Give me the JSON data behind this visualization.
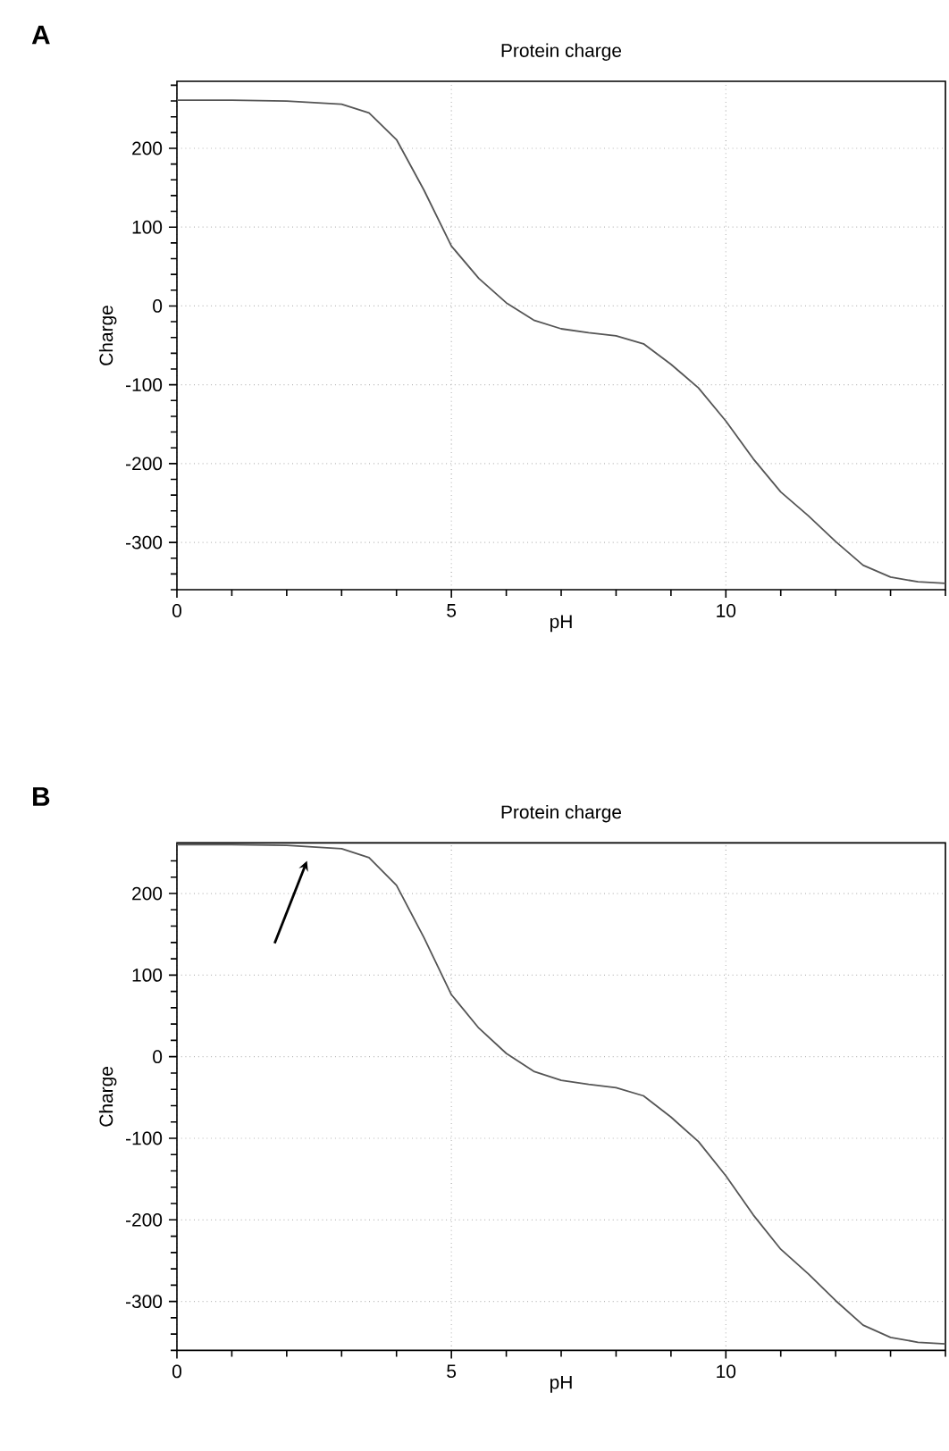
{
  "chart_data": [
    {
      "type": "line",
      "title": "Protein charge",
      "xlabel": "pH",
      "ylabel": "Charge",
      "annotations": [
        "A"
      ],
      "x": [
        0,
        1,
        2,
        3,
        3.5,
        4,
        4.5,
        5,
        5.5,
        6,
        6.5,
        7,
        7.5,
        8,
        8.5,
        9,
        9.5,
        10,
        10.5,
        11,
        11.5,
        12,
        12.5,
        13,
        13.5,
        14
      ],
      "series": [
        {
          "color": "#555555",
          "values": [
            261,
            261,
            260,
            256,
            245,
            211,
            147,
            76,
            35,
            4,
            -18,
            -29,
            -34,
            -38,
            -48,
            -74,
            -104,
            -146,
            -194,
            -236,
            -266,
            -299,
            -329,
            -344,
            -350,
            -352
          ]
        }
      ],
      "xlim": [
        0,
        14
      ],
      "ylim": [
        -360,
        285
      ],
      "grid": true,
      "marker": "none",
      "line_style": "solid",
      "xticks": [
        0,
        {
          "value": 1,
          "label": null
        },
        {
          "value": 2,
          "label": null
        },
        {
          "value": 3,
          "label": null
        },
        {
          "value": 4,
          "label": null
        },
        5,
        {
          "value": 6,
          "label": null
        },
        {
          "value": 7,
          "label": null
        },
        {
          "value": 8,
          "label": null
        },
        {
          "value": 9,
          "label": null
        },
        10,
        {
          "value": 11,
          "label": null
        },
        {
          "value": 12,
          "label": null
        },
        {
          "value": 13,
          "label": null
        },
        {
          "value": 14,
          "label": null
        }
      ],
      "yticks": [
        {
          "value": -360,
          "label": null
        },
        {
          "value": -340,
          "label": null
        },
        {
          "value": -320,
          "label": null
        },
        -300,
        {
          "value": -280,
          "label": null
        },
        {
          "value": -260,
          "label": null
        },
        {
          "value": -240,
          "label": null
        },
        {
          "value": -220,
          "label": null
        },
        -200,
        {
          "value": -180,
          "label": null
        },
        {
          "value": -160,
          "label": null
        },
        {
          "value": -140,
          "label": null
        },
        {
          "value": -120,
          "label": null
        },
        -100,
        {
          "value": -80,
          "label": null
        },
        {
          "value": -60,
          "label": null
        },
        {
          "value": -40,
          "label": null
        },
        {
          "value": -20,
          "label": null
        },
        0,
        {
          "value": 20,
          "label": null
        },
        {
          "value": 40,
          "label": null
        },
        {
          "value": 60,
          "label": null
        },
        {
          "value": 80,
          "label": null
        },
        100,
        {
          "value": 120,
          "label": null
        },
        {
          "value": 140,
          "label": null
        },
        {
          "value": 160,
          "label": null
        },
        {
          "value": 180,
          "label": null
        },
        200,
        {
          "value": 220,
          "label": null
        },
        {
          "value": 240,
          "label": null
        },
        {
          "value": 260,
          "label": null
        },
        {
          "value": 280,
          "label": null
        }
      ]
    },
    {
      "type": "line",
      "title": "Protein charge",
      "xlabel": "pH",
      "ylabel": "Charge",
      "annotations": [
        "B"
      ],
      "x": [
        0,
        1,
        2,
        3,
        3.5,
        4,
        4.5,
        5,
        5.5,
        6,
        6.5,
        7,
        7.5,
        8,
        8.5,
        9,
        9.5,
        10,
        10.5,
        11,
        11.5,
        12,
        12.5,
        13,
        13.5,
        14
      ],
      "series": [
        {
          "color": "#555555",
          "values": [
            260,
            260,
            259,
            255,
            244,
            210,
            146,
            76,
            35,
            4,
            -18,
            -29,
            -34,
            -38,
            -48,
            -74,
            -104,
            -146,
            -194,
            -236,
            -266,
            -299,
            -329,
            -344,
            -350,
            -352
          ]
        }
      ],
      "xlim": [
        0,
        14
      ],
      "ylim": [
        -360,
        262
      ],
      "grid": true,
      "marker": "none",
      "line_style": "solid",
      "xticks": [
        0,
        {
          "value": 1,
          "label": null
        },
        {
          "value": 2,
          "label": null
        },
        {
          "value": 3,
          "label": null
        },
        {
          "value": 4,
          "label": null
        },
        5,
        {
          "value": 6,
          "label": null
        },
        {
          "value": 7,
          "label": null
        },
        {
          "value": 8,
          "label": null
        },
        {
          "value": 9,
          "label": null
        },
        10,
        {
          "value": 11,
          "label": null
        },
        {
          "value": 12,
          "label": null
        },
        {
          "value": 13,
          "label": null
        },
        {
          "value": 14,
          "label": null
        }
      ],
      "yticks": [
        {
          "value": -360,
          "label": null
        },
        {
          "value": -340,
          "label": null
        },
        {
          "value": -320,
          "label": null
        },
        -300,
        {
          "value": -280,
          "label": null
        },
        {
          "value": -260,
          "label": null
        },
        {
          "value": -240,
          "label": null
        },
        {
          "value": -220,
          "label": null
        },
        -200,
        {
          "value": -180,
          "label": null
        },
        {
          "value": -160,
          "label": null
        },
        {
          "value": -140,
          "label": null
        },
        {
          "value": -120,
          "label": null
        },
        -100,
        {
          "value": -80,
          "label": null
        },
        {
          "value": -60,
          "label": null
        },
        {
          "value": -40,
          "label": null
        },
        {
          "value": -20,
          "label": null
        },
        0,
        {
          "value": 20,
          "label": null
        },
        {
          "value": 40,
          "label": null
        },
        {
          "value": 60,
          "label": null
        },
        {
          "value": 80,
          "label": null
        },
        100,
        {
          "value": 120,
          "label": null
        },
        {
          "value": 140,
          "label": null
        },
        {
          "value": 160,
          "label": null
        },
        {
          "value": 180,
          "label": null
        },
        200,
        {
          "value": 220,
          "label": null
        },
        {
          "value": 240,
          "label": null
        }
      ]
    }
  ]
}
